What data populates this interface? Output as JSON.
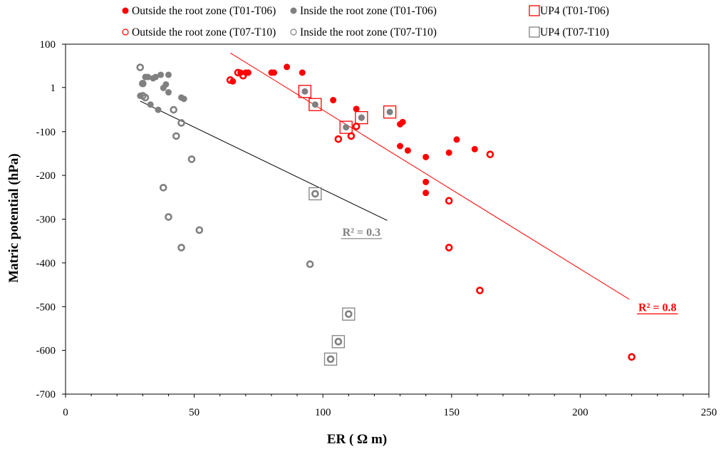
{
  "chart_data": {
    "type": "scatter",
    "xlabel": "ER ( Ω m)",
    "ylabel": "Matric potential (hPa)",
    "xlim": [
      0,
      250
    ],
    "ylim": [
      -700,
      100
    ],
    "xticks": [
      "0",
      "50",
      "100",
      "150",
      "200",
      "250"
    ],
    "yticks": [
      "100",
      "1",
      "-100",
      "-200",
      "-300",
      "-400",
      "-500",
      "-600",
      "-700"
    ],
    "ytick_values": [
      100,
      1,
      -100,
      -200,
      -300,
      -400,
      -500,
      -600,
      -700
    ],
    "grid": false,
    "legend_position": "top",
    "series": [
      {
        "name": "Outside the root zone (T01-T06)",
        "color": "#ff0000",
        "marker": "filled-circle",
        "points": [
          [
            65,
            15
          ],
          [
            68,
            35
          ],
          [
            70,
            35
          ],
          [
            71,
            35
          ],
          [
            80,
            35
          ],
          [
            81,
            35
          ],
          [
            86,
            48
          ],
          [
            92,
            35
          ],
          [
            104,
            -28
          ],
          [
            113,
            -48
          ],
          [
            115,
            -68
          ],
          [
            130,
            -83
          ],
          [
            131,
            -78
          ],
          [
            130,
            -133
          ],
          [
            133,
            -143
          ],
          [
            140,
            -158
          ],
          [
            140,
            -215
          ],
          [
            140,
            -240
          ],
          [
            149,
            -148
          ],
          [
            152,
            -118
          ],
          [
            159,
            -140
          ]
        ]
      },
      {
        "name": "Inside the root zone (T01-T06)",
        "color": "#808080",
        "marker": "filled-circle",
        "points": [
          [
            29,
            -18
          ],
          [
            30,
            10
          ],
          [
            31,
            25
          ],
          [
            32,
            25
          ],
          [
            33,
            -38
          ],
          [
            34,
            22
          ],
          [
            35,
            25
          ],
          [
            36,
            -50
          ],
          [
            37,
            30
          ],
          [
            38,
            0
          ],
          [
            39,
            8
          ],
          [
            40,
            -10
          ],
          [
            40,
            30
          ],
          [
            45,
            -22
          ],
          [
            46,
            -25
          ],
          [
            93,
            -8
          ],
          [
            97,
            -38
          ],
          [
            109,
            -90
          ],
          [
            115,
            -68
          ],
          [
            126,
            -55
          ]
        ]
      },
      {
        "name": "UP4 (T01-T06)",
        "color": "#ff0000",
        "marker": "open-square",
        "points": [
          [
            93,
            -8
          ],
          [
            97,
            -38
          ],
          [
            109,
            -90
          ],
          [
            115,
            -68
          ],
          [
            126,
            -55
          ]
        ]
      },
      {
        "name": "Outside the root zone (T07-T10)",
        "color": "#ff0000",
        "marker": "open-circle",
        "points": [
          [
            64,
            18
          ],
          [
            67,
            35
          ],
          [
            69,
            28
          ],
          [
            106,
            -117
          ],
          [
            111,
            -110
          ],
          [
            113,
            -88
          ],
          [
            149,
            -258
          ],
          [
            149,
            -365
          ],
          [
            161,
            -463
          ],
          [
            165,
            -152
          ],
          [
            220,
            -615
          ]
        ]
      },
      {
        "name": "Inside the root zone (T07-T10)",
        "color": "#808080",
        "marker": "open-circle",
        "points": [
          [
            29,
            47
          ],
          [
            30,
            -18
          ],
          [
            30,
            10
          ],
          [
            31,
            -22
          ],
          [
            38,
            -228
          ],
          [
            40,
            -295
          ],
          [
            42,
            -50
          ],
          [
            43,
            -110
          ],
          [
            45,
            -80
          ],
          [
            45,
            -365
          ],
          [
            49,
            -163
          ],
          [
            52,
            -325
          ],
          [
            95,
            -403
          ],
          [
            97,
            -242
          ],
          [
            103,
            -620
          ],
          [
            106,
            -580
          ],
          [
            110,
            -517
          ]
        ]
      },
      {
        "name": "UP4 (T07-T10)",
        "color": "#808080",
        "marker": "open-square",
        "points": [
          [
            97,
            -242
          ],
          [
            103,
            -620
          ],
          [
            106,
            -580
          ],
          [
            110,
            -517
          ]
        ]
      }
    ],
    "trendlines": [
      {
        "color": "#000000",
        "from": [
          29,
          -30
        ],
        "to": [
          125,
          -303
        ]
      },
      {
        "color": "#ff0000",
        "from": [
          64,
          80
        ],
        "to": [
          219,
          -483
        ]
      }
    ],
    "annotations": [
      {
        "text": "R² = 0.3",
        "color": "#808080",
        "at": [
          115,
          -338
        ]
      },
      {
        "text": "R² = 0.8",
        "color": "#ff0000",
        "at": [
          230,
          -510
        ]
      }
    ]
  }
}
